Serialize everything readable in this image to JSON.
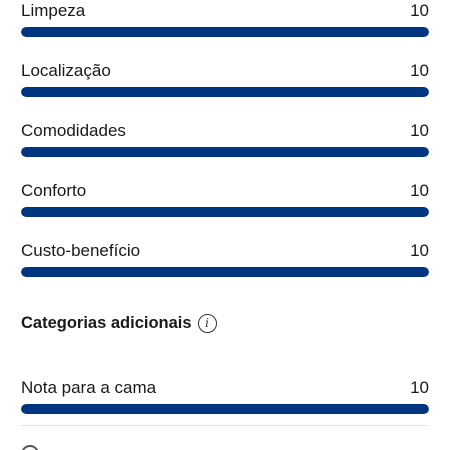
{
  "scores": [
    {
      "label": "Limpeza",
      "value": "10",
      "fraction": 1.0
    },
    {
      "label": "Localização",
      "value": "10",
      "fraction": 1.0
    },
    {
      "label": "Comodidades",
      "value": "10",
      "fraction": 1.0
    },
    {
      "label": "Conforto",
      "value": "10",
      "fraction": 1.0
    },
    {
      "label": "Custo-benefício",
      "value": "10",
      "fraction": 1.0
    }
  ],
  "additional": {
    "title": "Categorias adicionais",
    "info_icon": "info-icon",
    "items": [
      {
        "label": "Nota para a cama",
        "value": "10",
        "fraction": 1.0
      }
    ]
  },
  "colors": {
    "bar_fill": "#003580",
    "bar_track": "#e6e6e6"
  }
}
